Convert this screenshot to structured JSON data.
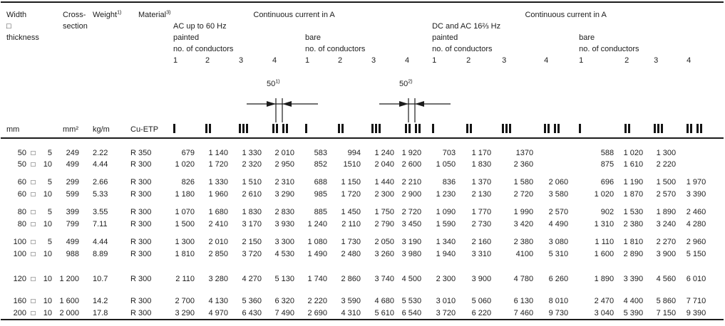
{
  "page": {
    "background": "#ffffff",
    "text_color": "#1c1c1c"
  },
  "table": {
    "size_separator": "□",
    "header": {
      "col1": {
        "line1": "Width",
        "line2": "□",
        "line3": "thickness",
        "unit": "mm"
      },
      "col2": {
        "line1": "Cross-",
        "line2": "section",
        "unit": "mm²"
      },
      "col3": {
        "label": "Weight",
        "sup": "1)",
        "unit": "kg/m"
      },
      "col4": {
        "label": "Material",
        "sup": "3)",
        "unit": "Cu-ETP"
      },
      "ac": {
        "title": "Continuous current in A",
        "system": "AC up to 60 Hz"
      },
      "dc": {
        "title": "Continuous current in A",
        "system": "DC and AC 16⅔ Hz"
      },
      "painted": "painted",
      "bare": "bare",
      "conductors_label": "no. of conductors",
      "digits": [
        "1",
        "2",
        "3",
        "4"
      ]
    },
    "dim_notes": [
      {
        "value": "50",
        "sup": "1)"
      },
      {
        "value": "50",
        "sup": "2)"
      }
    ],
    "icons": {
      "description": "busbar cross-section arrangement icons",
      "arrangements": [
        "1 bar",
        "2 bars",
        "3 bars",
        "2 + 2 bars with 50 mm spacing"
      ]
    },
    "row_groups": [
      [
        {
          "size": [
            "50",
            "5"
          ],
          "cross_section": "249",
          "weight": "2.22",
          "material": "R 350",
          "values": [
            "679",
            "1 140",
            "1 330",
            "2 010",
            "583",
            "994",
            "1 240",
            "1 920",
            "703",
            "1 170",
            "1370",
            "",
            "588",
            "1 020",
            "1 300",
            ""
          ]
        },
        {
          "size": [
            "50",
            "10"
          ],
          "cross_section": "499",
          "weight": "4.44",
          "material": "R 300",
          "values": [
            "1 020",
            "1 720",
            "2 320",
            "2 950",
            "852",
            "1510",
            "2 040",
            "2 600",
            "1 050",
            "1 830",
            "2 360",
            "",
            "875",
            "1 610",
            "2 220",
            ""
          ]
        }
      ],
      [
        {
          "size": [
            "60",
            "5"
          ],
          "cross_section": "299",
          "weight": "2.66",
          "material": "R 300",
          "values": [
            "826",
            "1 330",
            "1 510",
            "2 310",
            "688",
            "1 150",
            "1 440",
            "2 210",
            "836",
            "1 370",
            "1 580",
            "2 060",
            "696",
            "1 190",
            "1 500",
            "1 970"
          ]
        },
        {
          "size": [
            "60",
            "10"
          ],
          "cross_section": "599",
          "weight": "5.33",
          "material": "R 300",
          "values": [
            "1 180",
            "1 960",
            "2 610",
            "3 290",
            "985",
            "1 720",
            "2 300",
            "2 900",
            "1 230",
            "2 130",
            "2 720",
            "3 580",
            "1 020",
            "1 870",
            "2 570",
            "3 390"
          ]
        }
      ],
      [
        {
          "size": [
            "80",
            "5"
          ],
          "cross_section": "399",
          "weight": "3.55",
          "material": "R 300",
          "values": [
            "1 070",
            "1 680",
            "1 830",
            "2 830",
            "885",
            "1 450",
            "1 750",
            "2 720",
            "1 090",
            "1 770",
            "1 990",
            "2 570",
            "902",
            "1 530",
            "1 890",
            "2 460"
          ]
        },
        {
          "size": [
            "80",
            "10"
          ],
          "cross_section": "799",
          "weight": "7.11",
          "material": "R 300",
          "values": [
            "1 500",
            "2 410",
            "3 170",
            "3 930",
            "1 240",
            "2 110",
            "2 790",
            "3 450",
            "1 590",
            "2 730",
            "3 420",
            "4 490",
            "1 310",
            "2 380",
            "3 240",
            "4 280"
          ]
        }
      ],
      [
        {
          "size": [
            "100",
            "5"
          ],
          "cross_section": "499",
          "weight": "4.44",
          "material": "R 300",
          "values": [
            "1 300",
            "2 010",
            "2 150",
            "3 300",
            "1 080",
            "1 730",
            "2 050",
            "3 190",
            "1 340",
            "2 160",
            "2 380",
            "3 080",
            "1 110",
            "1 810",
            "2 270",
            "2 960"
          ]
        },
        {
          "size": [
            "100",
            "10"
          ],
          "cross_section": "988",
          "weight": "8.89",
          "material": "R 300",
          "values": [
            "1 810",
            "2 850",
            "3 720",
            "4 530",
            "1 490",
            "2 480",
            "3 260",
            "3 980",
            "1 940",
            "3 310",
            "4100",
            "5 310",
            "1 600",
            "2 890",
            "3 900",
            "5 150"
          ]
        }
      ],
      [
        {
          "size": [
            "120",
            "10"
          ],
          "cross_section": "1 200",
          "weight": "10.7",
          "material": "R 300",
          "values": [
            "2 110",
            "3 280",
            "4 270",
            "5 130",
            "1 740",
            "2 860",
            "3 740",
            "4 500",
            "2 300",
            "3 900",
            "4 780",
            "6 260",
            "1 890",
            "3 390",
            "4 560",
            "6 010"
          ]
        }
      ],
      [
        {
          "size": [
            "160",
            "10"
          ],
          "cross_section": "1 600",
          "weight": "14.2",
          "material": "R 300",
          "values": [
            "2 700",
            "4 130",
            "5 360",
            "6 320",
            "2 220",
            "3 590",
            "4 680",
            "5 530",
            "3 010",
            "5 060",
            "6 130",
            "8 010",
            "2 470",
            "4 400",
            "5 860",
            "7 710"
          ]
        },
        {
          "size": [
            "200",
            "10"
          ],
          "cross_section": "2 000",
          "weight": "17.8",
          "material": "R 300",
          "values": [
            "3 290",
            "4 970",
            "6 430",
            "7 490",
            "2 690",
            "4 310",
            "5 610",
            "6 540",
            "3 720",
            "6 220",
            "7 460",
            "9 730",
            "3 040",
            "5 390",
            "7 150",
            "9 390"
          ]
        }
      ]
    ]
  }
}
